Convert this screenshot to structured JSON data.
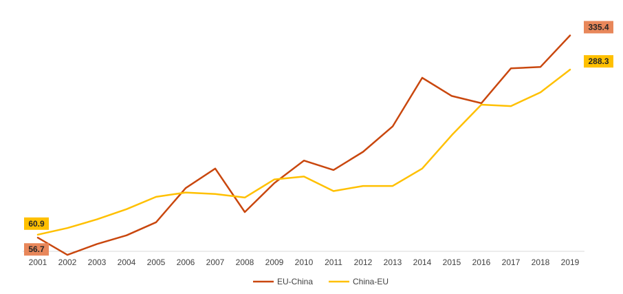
{
  "chart_data": {
    "type": "line",
    "x": [
      "2001",
      "2002",
      "2003",
      "2004",
      "2005",
      "2006",
      "2007",
      "2008",
      "2009",
      "2010",
      "2011",
      "2012",
      "2013",
      "2014",
      "2015",
      "2016",
      "2017",
      "2018",
      "2019"
    ],
    "series": [
      {
        "name": "EU-China",
        "color": "#C9470E",
        "values": [
          56.7,
          33,
          48,
          60,
          78,
          125,
          152,
          92,
          132,
          163,
          150,
          175,
          210,
          277,
          252,
          242,
          290,
          292,
          335.4
        ]
      },
      {
        "name": "China-EU",
        "color": "#FFC000",
        "values": [
          60.9,
          70,
          82,
          96,
          113,
          119,
          117,
          112,
          137,
          141,
          121,
          128,
          128,
          152,
          198,
          240,
          238,
          257,
          288.3
        ]
      }
    ],
    "data_labels": [
      {
        "series": 0,
        "index": 0,
        "text": "56.7",
        "bg": "#E8875A"
      },
      {
        "series": 1,
        "index": 0,
        "text": "60.9",
        "bg": "#FFC000"
      },
      {
        "series": 0,
        "index": 18,
        "text": "335.4",
        "bg": "#E8875A"
      },
      {
        "series": 1,
        "index": 18,
        "text": "288.3",
        "bg": "#FFC000"
      }
    ],
    "ylim": [
      0,
      370
    ],
    "grid": false,
    "legend_position": "bottom"
  }
}
